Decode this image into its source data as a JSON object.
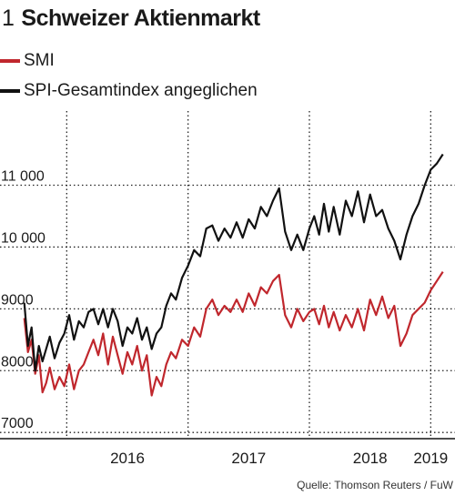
{
  "header": {
    "number": "1",
    "title": "Schweizer Aktienmarkt"
  },
  "source": "Quelle: Thomson Reuters / FuW",
  "colors": {
    "smi": "#c0272d",
    "spi": "#111111",
    "grid": "#222222"
  },
  "chart_data": {
    "type": "line",
    "title": "Schweizer Aktienmarkt",
    "ylim": [
      6900,
      12200
    ],
    "y_ticks": [
      {
        "value": 7000,
        "label": "7000"
      },
      {
        "value": 8000,
        "label": "8000"
      },
      {
        "value": 9000,
        "label": "9000"
      },
      {
        "value": 10000,
        "label": "10 000"
      },
      {
        "value": 11000,
        "label": "11 000"
      }
    ],
    "x_range": [
      2015.45,
      2019.2
    ],
    "x_gridlines": [
      2016.0,
      2017.0,
      2018.0,
      2019.0
    ],
    "x_labels": [
      {
        "x": 2016.5,
        "label": "2016"
      },
      {
        "x": 2017.5,
        "label": "2017"
      },
      {
        "x": 2018.5,
        "label": "2018"
      },
      {
        "x": 2019.0,
        "label": "2019"
      }
    ],
    "grid": true,
    "series": [
      {
        "name": "SMI",
        "color": "#c0272d",
        "x": [
          2015.65,
          2015.68,
          2015.71,
          2015.74,
          2015.77,
          2015.8,
          2015.83,
          2015.86,
          2015.9,
          2015.94,
          2015.98,
          2016.02,
          2016.06,
          2016.1,
          2016.14,
          2016.18,
          2016.22,
          2016.26,
          2016.3,
          2016.34,
          2016.38,
          2016.42,
          2016.46,
          2016.5,
          2016.54,
          2016.58,
          2016.62,
          2016.66,
          2016.7,
          2016.74,
          2016.78,
          2016.82,
          2016.86,
          2016.9,
          2016.95,
          2017.0,
          2017.05,
          2017.1,
          2017.15,
          2017.2,
          2017.25,
          2017.3,
          2017.35,
          2017.4,
          2017.45,
          2017.5,
          2017.55,
          2017.6,
          2017.65,
          2017.7,
          2017.75,
          2017.8,
          2017.85,
          2017.9,
          2017.95,
          2018.0,
          2018.04,
          2018.08,
          2018.12,
          2018.16,
          2018.2,
          2018.25,
          2018.3,
          2018.35,
          2018.4,
          2018.45,
          2018.5,
          2018.55,
          2018.6,
          2018.65,
          2018.7,
          2018.75,
          2018.8,
          2018.85,
          2018.9,
          2018.95,
          2019.0,
          2019.05,
          2019.1
        ],
        "values": [
          8850,
          8300,
          8500,
          7950,
          8250,
          7650,
          7800,
          8050,
          7700,
          7900,
          7750,
          8100,
          7700,
          8000,
          8100,
          8300,
          8500,
          8250,
          8600,
          8100,
          8550,
          8250,
          7950,
          8300,
          8100,
          8400,
          8000,
          8250,
          7600,
          7900,
          7750,
          8100,
          8300,
          8200,
          8500,
          8400,
          8700,
          8550,
          9000,
          9150,
          8900,
          9050,
          8950,
          9150,
          8950,
          9250,
          9050,
          9350,
          9250,
          9450,
          9550,
          8900,
          8700,
          9000,
          8800,
          8950,
          9000,
          8750,
          9050,
          8700,
          8950,
          8650,
          8900,
          8700,
          9000,
          8650,
          9150,
          8900,
          9200,
          8850,
          9050,
          8400,
          8600,
          8900,
          9000,
          9100,
          9300,
          9450,
          9600
        ]
      },
      {
        "name": "SPI-Gesamtindex angeglichen",
        "color": "#111111",
        "x": [
          2015.65,
          2015.68,
          2015.71,
          2015.74,
          2015.77,
          2015.8,
          2015.83,
          2015.86,
          2015.9,
          2015.94,
          2015.98,
          2016.02,
          2016.06,
          2016.1,
          2016.14,
          2016.18,
          2016.22,
          2016.26,
          2016.3,
          2016.34,
          2016.38,
          2016.42,
          2016.46,
          2016.5,
          2016.54,
          2016.58,
          2016.62,
          2016.66,
          2016.7,
          2016.74,
          2016.78,
          2016.82,
          2016.86,
          2016.9,
          2016.95,
          2017.0,
          2017.05,
          2017.1,
          2017.15,
          2017.2,
          2017.25,
          2017.3,
          2017.35,
          2017.4,
          2017.45,
          2017.5,
          2017.55,
          2017.6,
          2017.65,
          2017.7,
          2017.75,
          2017.8,
          2017.85,
          2017.9,
          2017.95,
          2018.0,
          2018.04,
          2018.08,
          2018.12,
          2018.16,
          2018.2,
          2018.25,
          2018.3,
          2018.35,
          2018.4,
          2018.45,
          2018.5,
          2018.55,
          2018.6,
          2018.65,
          2018.7,
          2018.75,
          2018.8,
          2018.85,
          2018.9,
          2018.95,
          2019.0,
          2019.05,
          2019.1
        ],
        "values": [
          9100,
          8400,
          8700,
          8000,
          8400,
          8150,
          8350,
          8550,
          8200,
          8450,
          8600,
          8900,
          8500,
          8800,
          8700,
          8950,
          9000,
          8750,
          9000,
          8700,
          9000,
          8800,
          8400,
          8700,
          8600,
          8850,
          8500,
          8700,
          8350,
          8600,
          8700,
          9050,
          9250,
          9150,
          9500,
          9700,
          9950,
          9850,
          10300,
          10350,
          10100,
          10300,
          10150,
          10400,
          10150,
          10450,
          10300,
          10650,
          10500,
          10750,
          10950,
          10250,
          9950,
          10200,
          9950,
          10300,
          10500,
          10200,
          10700,
          10250,
          10650,
          10200,
          10750,
          10500,
          10900,
          10400,
          10850,
          10500,
          10600,
          10300,
          10100,
          9800,
          10200,
          10500,
          10700,
          11000,
          11250,
          11350,
          11500
        ]
      }
    ]
  }
}
